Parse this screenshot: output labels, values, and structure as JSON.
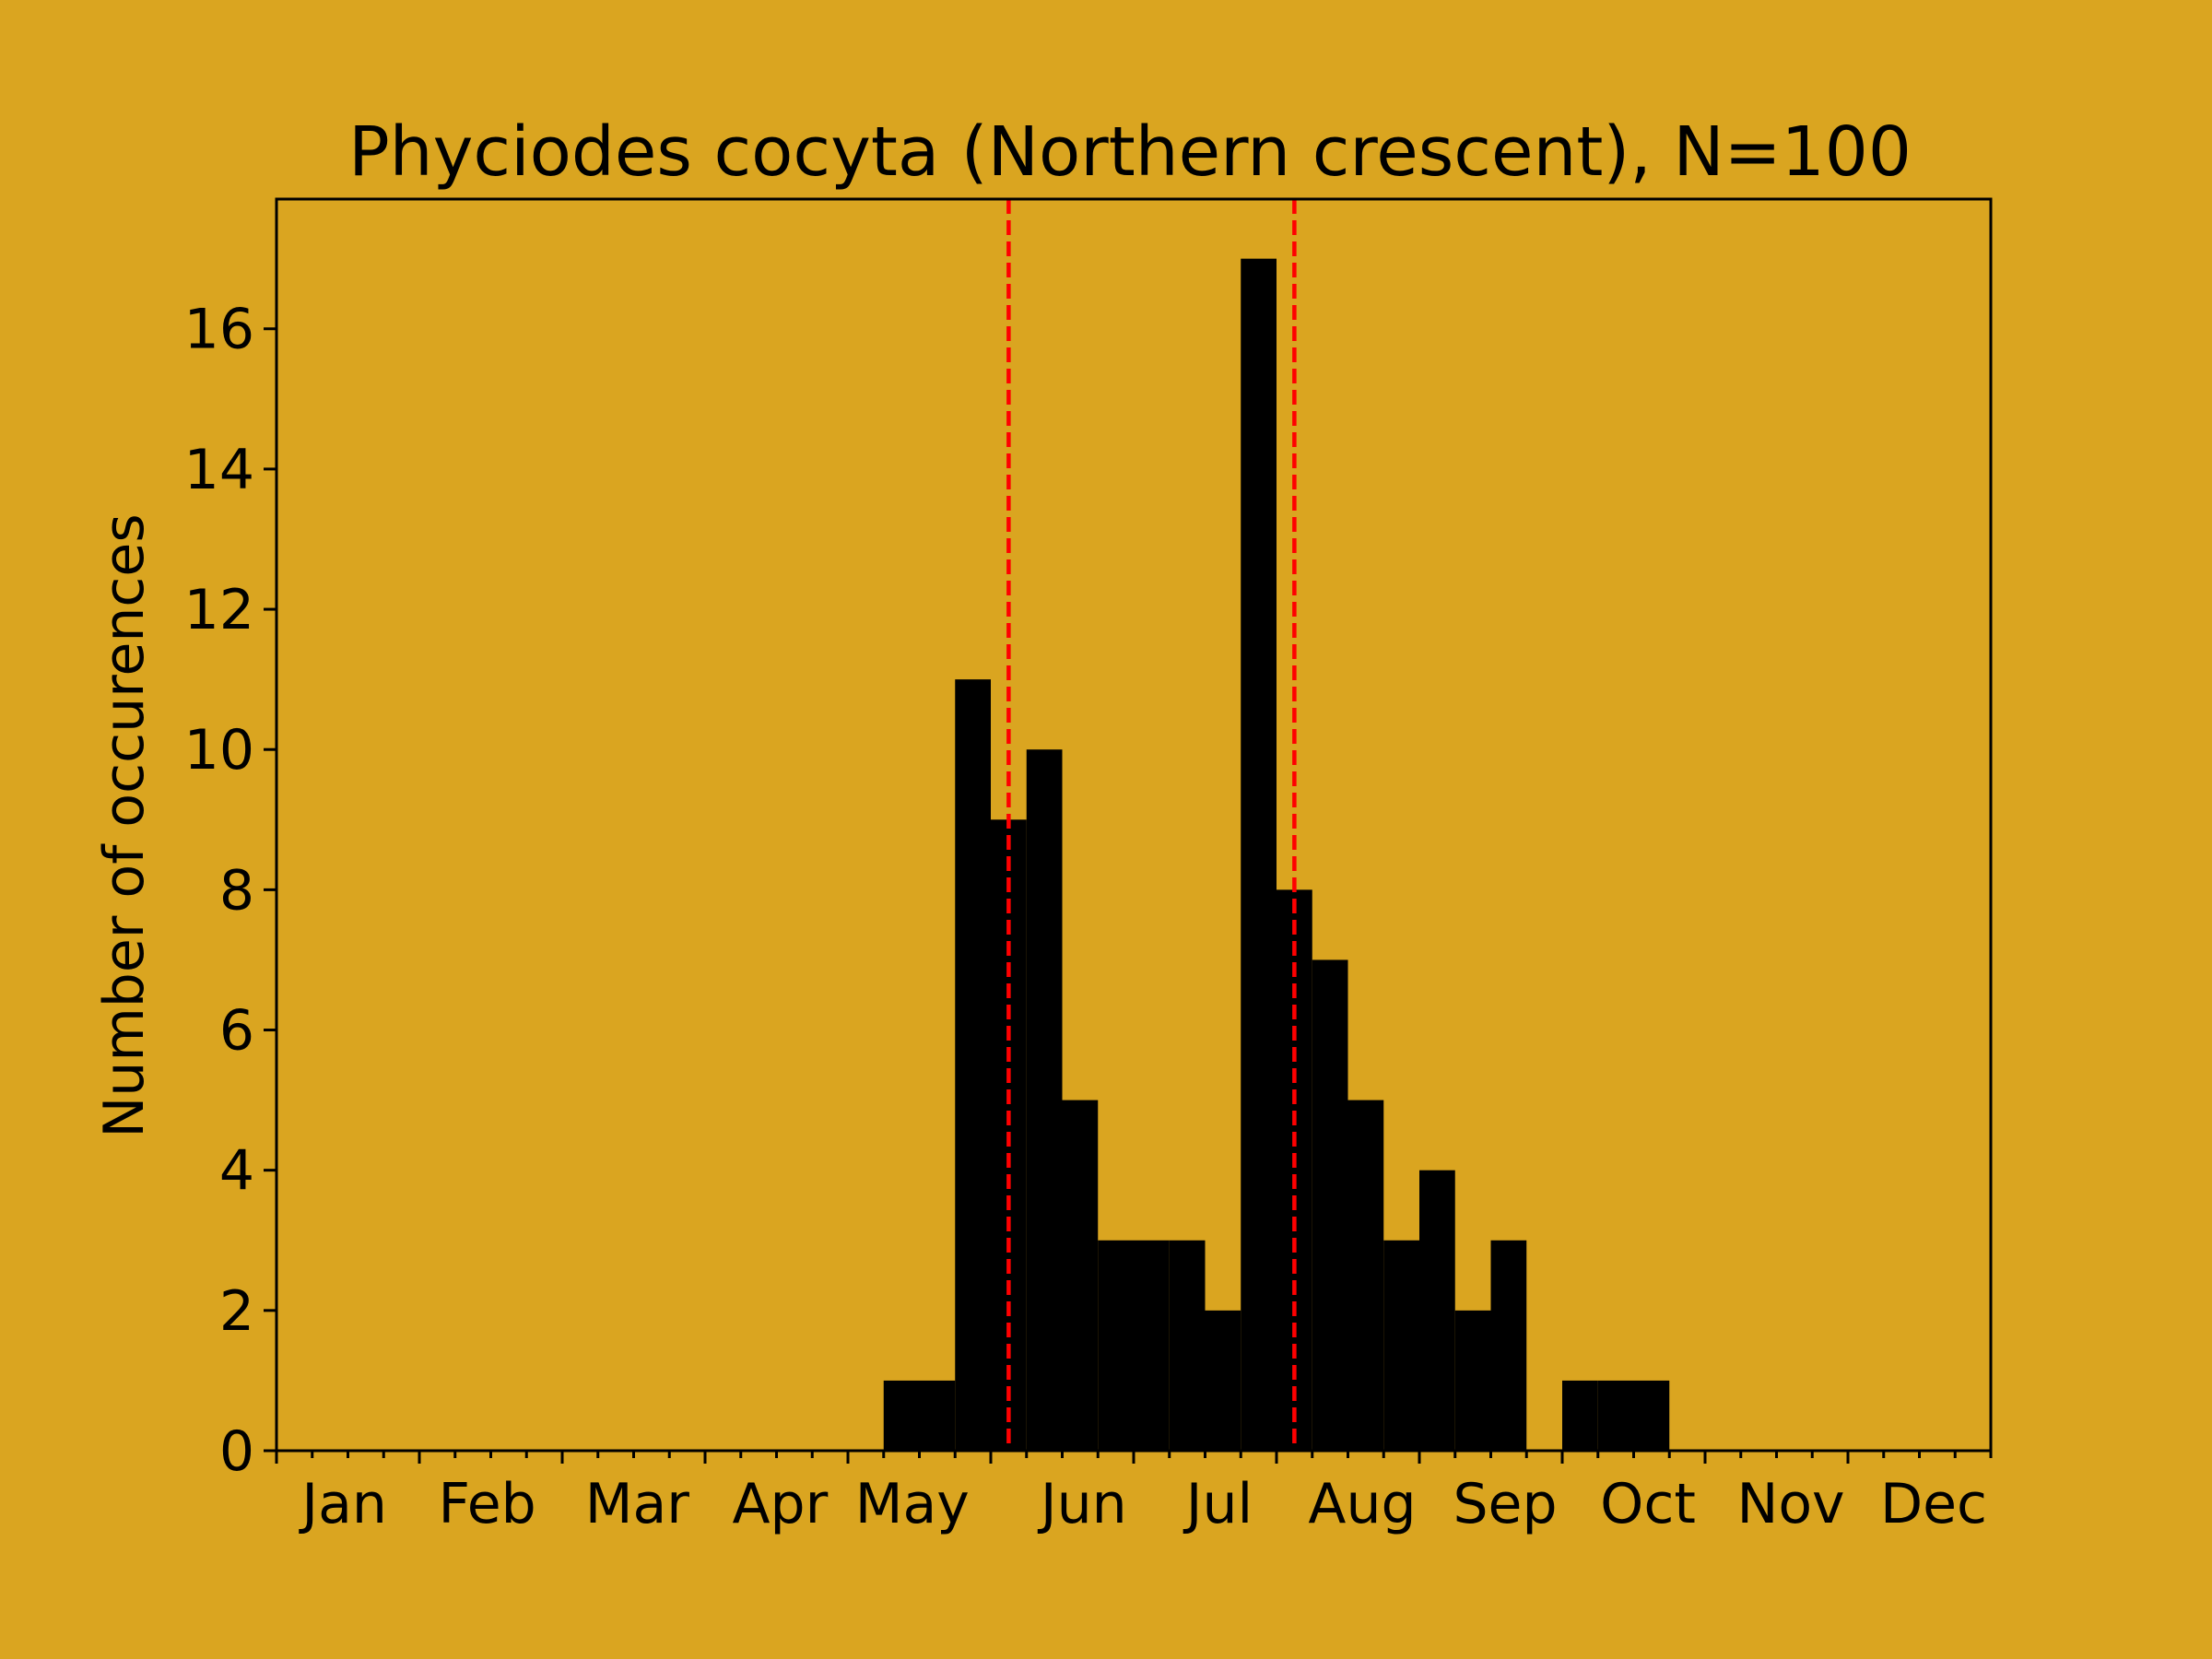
{
  "chart_data": {
    "type": "bar",
    "title": "Phyciodes cocyta (Northern crescent), N=100",
    "xlabel": "",
    "ylabel": "Number of occurences",
    "ylim": [
      0,
      17.85
    ],
    "yticks": [
      0,
      2,
      4,
      6,
      8,
      10,
      12,
      14,
      16
    ],
    "ytick_labels": [
      "0",
      "2",
      "4",
      "6",
      "8",
      "10",
      "12",
      "14",
      "16"
    ],
    "xlim": [
      0,
      48
    ],
    "month_labels": [
      "Jan",
      "Feb",
      "Mar",
      "Apr",
      "May",
      "Jun",
      "Jul",
      "Aug",
      "Sep",
      "Oct",
      "Nov",
      "Dec"
    ],
    "bin_edges": [
      0,
      1,
      2,
      3,
      4,
      5,
      6,
      7,
      8,
      9,
      10,
      11,
      12,
      13,
      14,
      15,
      16,
      17,
      18,
      19,
      20,
      21,
      22,
      23,
      24,
      25,
      26,
      27,
      28,
      29,
      30,
      31,
      32,
      33,
      34,
      35,
      36,
      37,
      38,
      39,
      40,
      41,
      42,
      43,
      44,
      45,
      46,
      47,
      48
    ],
    "values": [
      0,
      0,
      0,
      0,
      0,
      0,
      0,
      0,
      0,
      0,
      0,
      0,
      0,
      0,
      0,
      0,
      0,
      1,
      1,
      11,
      9,
      10,
      5,
      3,
      3,
      3,
      2,
      17,
      8,
      7,
      5,
      3,
      4,
      2,
      3,
      0,
      1,
      1,
      1,
      0,
      0,
      0,
      0,
      0,
      0,
      0,
      0,
      0
    ],
    "bar_color": "#000000",
    "background_color": "#DAA520",
    "vlines": [
      {
        "x": 20.5,
        "color": "#FF0000",
        "style": "dashed"
      },
      {
        "x": 28.5,
        "color": "#FF0000",
        "style": "dashed"
      }
    ],
    "grid": false,
    "legend": "none"
  }
}
